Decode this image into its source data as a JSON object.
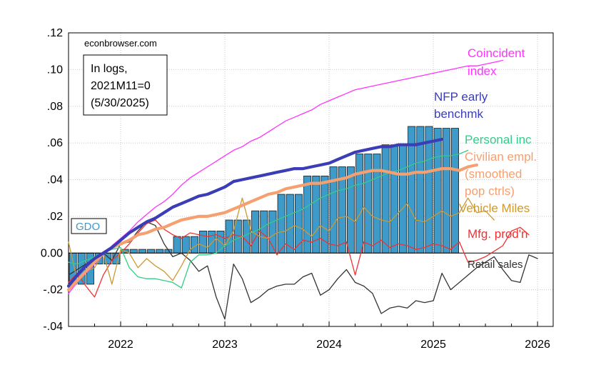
{
  "chart_data": {
    "type": "line",
    "source_label": "econbrowser.com",
    "note_lines": [
      "In logs,",
      "2021M11=0",
      "(5/30/2025)"
    ],
    "xlim": [
      2021.5,
      2026.15
    ],
    "ylim": [
      -0.04,
      0.12
    ],
    "yticks": [
      {
        "value": 0.12,
        "label": ".12"
      },
      {
        "value": 0.1,
        "label": ".10"
      },
      {
        "value": 0.08,
        "label": ".08"
      },
      {
        "value": 0.06,
        "label": ".06"
      },
      {
        "value": 0.04,
        "label": ".04"
      },
      {
        "value": 0.02,
        "label": ".02"
      },
      {
        "value": 0.0,
        "label": "0.00"
      },
      {
        "value": -0.02,
        "label": "-.02"
      },
      {
        "value": -0.04,
        "label": "-.04"
      }
    ],
    "xticks": [
      {
        "value": 2022,
        "label": "2022"
      },
      {
        "value": 2023,
        "label": "2023"
      },
      {
        "value": 2024,
        "label": "2024"
      },
      {
        "value": 2025,
        "label": "2025"
      },
      {
        "value": 2026,
        "label": "2026"
      }
    ],
    "grid": true,
    "zero_line": true,
    "gdo": {
      "name": "GDO",
      "color": "#3d9ac9",
      "quarters": [
        {
          "x": 2021.5,
          "value": -0.017
        },
        {
          "x": 2021.75,
          "value": -0.006
        },
        {
          "x": 2022.0,
          "value": 0.002
        },
        {
          "x": 2022.25,
          "value": 0.002
        },
        {
          "x": 2022.5,
          "value": 0.009
        },
        {
          "x": 2022.75,
          "value": 0.012
        },
        {
          "x": 2023.0,
          "value": 0.018
        },
        {
          "x": 2023.25,
          "value": 0.023
        },
        {
          "x": 2023.5,
          "value": 0.032
        },
        {
          "x": 2023.75,
          "value": 0.042
        },
        {
          "x": 2024.0,
          "value": 0.047
        },
        {
          "x": 2024.25,
          "value": 0.054
        },
        {
          "x": 2024.5,
          "value": 0.059
        },
        {
          "x": 2024.75,
          "value": 0.069
        },
        {
          "x": 2025.0,
          "value": 0.068
        }
      ]
    },
    "series": [
      {
        "name": "Coincident index",
        "label_lines": [
          "Coincident",
          "index"
        ],
        "color": "#ff33ff",
        "width": 1.3,
        "start": 2021.5,
        "step": 0.083333,
        "values": [
          -0.022,
          -0.016,
          -0.011,
          -0.006,
          -0.001,
          0.004,
          0.008,
          0.012,
          0.017,
          0.021,
          0.025,
          0.028,
          0.032,
          0.037,
          0.041,
          0.044,
          0.047,
          0.05,
          0.053,
          0.056,
          0.058,
          0.061,
          0.063,
          0.066,
          0.069,
          0.072,
          0.074,
          0.076,
          0.078,
          0.081,
          0.083,
          0.085,
          0.087,
          0.089,
          0.09,
          0.091,
          0.092,
          0.093,
          0.094,
          0.095,
          0.096,
          0.097,
          0.098,
          0.099,
          0.1,
          0.101,
          0.102,
          0.102,
          0.103,
          0.104,
          0.105
        ]
      },
      {
        "name": "NFP early benchmk",
        "label_lines": [
          "NFP early",
          "benchmk"
        ],
        "color": "#3a3db5",
        "width": 4.2,
        "start": 2021.5,
        "step": 0.083333,
        "values": [
          -0.018,
          -0.012,
          -0.007,
          -0.003,
          0.0,
          0.003,
          0.007,
          0.011,
          0.014,
          0.017,
          0.019,
          0.022,
          0.025,
          0.027,
          0.029,
          0.031,
          0.032,
          0.034,
          0.036,
          0.039,
          0.04,
          0.041,
          0.042,
          0.043,
          0.044,
          0.045,
          0.046,
          0.046,
          0.047,
          0.048,
          0.049,
          0.051,
          0.053,
          0.055,
          0.056,
          0.057,
          0.058,
          0.058,
          0.059,
          0.059,
          0.059,
          0.06,
          0.061,
          0.062
        ]
      },
      {
        "name": "Personal inc",
        "label_lines": [
          "Personal inc"
        ],
        "color": "#33cc88",
        "width": 1.3,
        "start": 2021.5,
        "step": 0.083333,
        "values": [
          -0.005,
          -0.006,
          -0.004,
          -0.002,
          0.0,
          0.002,
          0.003,
          -0.008,
          -0.013,
          -0.014,
          -0.014,
          -0.015,
          -0.016,
          -0.019,
          -0.005,
          -0.001,
          -0.001,
          0.0,
          0.004,
          0.007,
          0.009,
          0.011,
          0.013,
          0.016,
          0.018,
          0.02,
          0.022,
          0.024,
          0.027,
          0.03,
          0.032,
          0.034,
          0.035,
          0.037,
          0.038,
          0.04,
          0.042,
          0.044,
          0.045,
          0.047,
          0.049,
          0.05,
          0.052,
          0.053,
          0.053,
          0.054,
          0.056
        ]
      },
      {
        "name": "Civilian empl. (smoothed pop ctrls)",
        "label_lines": [
          "Civilian empl.",
          "(smoothed",
          "pop ctrls)"
        ],
        "color": "#f5a070",
        "width": 4.2,
        "start": 2021.5,
        "step": 0.083333,
        "values": [
          -0.02,
          -0.015,
          -0.01,
          -0.005,
          0.0,
          0.003,
          0.005,
          0.007,
          0.01,
          0.011,
          0.013,
          0.014,
          0.016,
          0.018,
          0.019,
          0.02,
          0.02,
          0.021,
          0.022,
          0.024,
          0.026,
          0.028,
          0.03,
          0.032,
          0.033,
          0.035,
          0.036,
          0.037,
          0.038,
          0.038,
          0.039,
          0.04,
          0.041,
          0.043,
          0.044,
          0.045,
          0.045,
          0.044,
          0.043,
          0.043,
          0.044,
          0.044,
          0.045,
          0.046,
          0.046,
          0.045,
          0.047,
          0.048
        ]
      },
      {
        "name": "Vehicle Miles",
        "label_lines": [
          "Vehicle Miles"
        ],
        "color": "#cc9933",
        "width": 1.3,
        "start": 2021.5,
        "step": 0.083333,
        "values": [
          0.006,
          -0.015,
          -0.01,
          -0.008,
          0.0,
          -0.017,
          0.002,
          0.0,
          -0.008,
          -0.003,
          -0.007,
          -0.01,
          -0.015,
          -0.007,
          0.002,
          0.005,
          0.003,
          0.008,
          0.004,
          0.012,
          0.03,
          0.012,
          0.009,
          0.008,
          0.011,
          0.012,
          0.015,
          0.013,
          0.009,
          0.015,
          0.012,
          0.019,
          0.02,
          0.017,
          0.025,
          0.02,
          0.018,
          0.017,
          0.022,
          0.027,
          0.018,
          0.017,
          0.02,
          0.023,
          0.02,
          0.022,
          0.03,
          0.022,
          0.023,
          0.018
        ]
      },
      {
        "name": "Mfg. prod'n",
        "label_lines": [
          "Mfg. prod'n"
        ],
        "color": "#ee3333",
        "width": 1.3,
        "start": 2021.5,
        "step": 0.083333,
        "values": [
          -0.016,
          -0.011,
          -0.018,
          -0.024,
          -0.012,
          -0.004,
          0.0,
          0.005,
          0.011,
          0.016,
          0.018,
          0.013,
          0.01,
          0.008,
          0.011,
          0.01,
          0.009,
          0.01,
          0.008,
          0.01,
          0.009,
          0.004,
          0.012,
          0.008,
          -0.001,
          0.005,
          0.002,
          0.007,
          0.006,
          0.008,
          0.005,
          0.004,
          0.006,
          -0.012,
          0.006,
          0.004,
          0.007,
          0.003,
          0.005,
          0.004,
          0.002,
          0.003,
          0.005,
          0.004,
          0.002,
          0.006,
          -0.005,
          -0.004,
          -0.002,
          0.001,
          0.004,
          0.012,
          0.014,
          0.01
        ]
      },
      {
        "name": "Retail sales",
        "label_lines": [
          "Retail sales"
        ],
        "color": "#333333",
        "width": 1.3,
        "start": 2021.5,
        "step": 0.083333,
        "values": [
          -0.012,
          -0.009,
          -0.006,
          -0.003,
          0.0,
          -0.004,
          0.005,
          0.006,
          0.012,
          0.017,
          0.015,
          0.005,
          -0.002,
          0.0,
          -0.004,
          -0.01,
          -0.007,
          -0.024,
          -0.036,
          -0.006,
          -0.014,
          -0.027,
          -0.024,
          -0.02,
          -0.018,
          -0.017,
          -0.017,
          -0.013,
          -0.011,
          -0.023,
          -0.02,
          -0.014,
          -0.009,
          -0.016,
          -0.018,
          -0.022,
          -0.033,
          -0.03,
          -0.029,
          -0.03,
          -0.026,
          -0.027,
          -0.026,
          -0.011,
          -0.02,
          -0.016,
          -0.012,
          -0.008,
          -0.005,
          -0.002,
          -0.009,
          -0.015,
          -0.016,
          -0.001,
          -0.003
        ]
      }
    ]
  }
}
